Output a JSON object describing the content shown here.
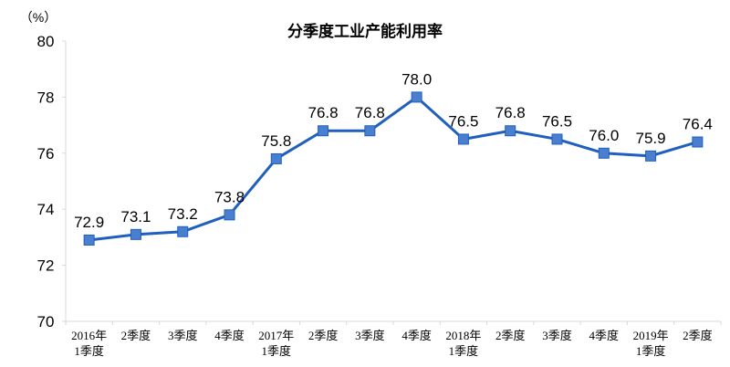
{
  "chart_data": {
    "type": "line",
    "title": "分季度工业产能利用率",
    "ylabel": "（%）",
    "xlabel": "",
    "ylim": [
      70,
      80
    ],
    "yticks": [
      70,
      72,
      74,
      76,
      78,
      80
    ],
    "grid": false,
    "categories": [
      [
        "2016年",
        "1季度"
      ],
      [
        "2季度"
      ],
      [
        "3季度"
      ],
      [
        "4季度"
      ],
      [
        "2017年",
        "1季度"
      ],
      [
        "2季度"
      ],
      [
        "3季度"
      ],
      [
        "4季度"
      ],
      [
        "2018年",
        "1季度"
      ],
      [
        "2季度"
      ],
      [
        "3季度"
      ],
      [
        "4季度"
      ],
      [
        "2019年",
        "1季度"
      ],
      [
        "2季度"
      ]
    ],
    "series": [
      {
        "values": [
          72.9,
          73.1,
          73.2,
          73.8,
          75.8,
          76.8,
          76.8,
          78.0,
          76.5,
          76.8,
          76.5,
          76.0,
          75.9,
          76.4
        ],
        "labels": [
          "72.9",
          "73.1",
          "73.2",
          "73.8",
          "75.8",
          "76.8",
          "76.8",
          "78.0",
          "76.5",
          "76.8",
          "76.5",
          "76.0",
          "75.9",
          "76.4"
        ],
        "color": "#1F5FBF",
        "marker_color": "#4A7FD0",
        "marker": "square"
      }
    ]
  }
}
